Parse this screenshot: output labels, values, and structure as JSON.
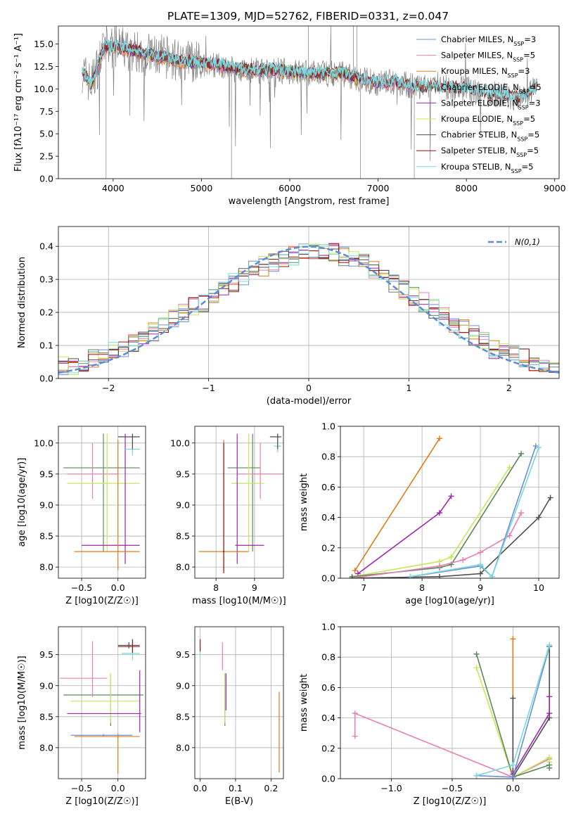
{
  "figure_title": "PLATE=1309, MJD=52762, FIBERID=0331, z=0.047",
  "colors": {
    "Chabrier MILES": "#6b8fd6",
    "Salpeter MILES": "#e680b4",
    "Kroupa MILES": "#e07b1e",
    "Chabrier ELODIE": "#5a8a5a",
    "Salpeter ELODIE": "#9b27af",
    "Kroupa ELODIE": "#c8e65a",
    "Chabrier STELIB": "#4d4d4d",
    "Salpeter STELIB": "#a01010",
    "Kroupa STELIB": "#7ad8dc",
    "data": "#808080",
    "normal": "#5b8ad6"
  },
  "chart_data": [
    {
      "id": "spectrum",
      "type": "line",
      "xlabel": "wavelength [Angstrom, rest frame]",
      "ylabel": "Flux [fλ10⁻¹⁷ erg cm⁻² s⁻¹ A⁻¹]",
      "xlim": [
        3380,
        9050
      ],
      "ylim": [
        0,
        17
      ],
      "xticks": [
        4000,
        5000,
        6000,
        7000,
        8000,
        9000
      ],
      "yticks": [
        0.0,
        2.5,
        5.0,
        7.5,
        10.0,
        12.5,
        15.0
      ],
      "legend": "top-right",
      "grid": false,
      "series": [
        {
          "name": "Chabrier MILES",
          "label": "Chabrier MILES, N_SSP=3"
        },
        {
          "name": "Salpeter MILES",
          "label": "Salpeter MILES, N_SSP=5"
        },
        {
          "name": "Kroupa MILES",
          "label": "Kroupa MILES, N_SSP=3"
        },
        {
          "name": "Chabrier ELODIE",
          "label": "Chabrier ELODIE, N_SSP=5"
        },
        {
          "name": "Salpeter ELODIE",
          "label": "Salpeter ELODIE, N_SSP=3"
        },
        {
          "name": "Kroupa ELODIE",
          "label": "Kroupa ELODIE, N_SSP=5"
        },
        {
          "name": "Chabrier STELIB",
          "label": "Chabrier STELIB, N_SSP=5"
        },
        {
          "name": "Salpeter STELIB",
          "label": "Salpeter STELIB, N_SSP=5"
        },
        {
          "name": "Kroupa STELIB",
          "label": "Kroupa STELIB, N_SSP=5"
        }
      ],
      "continuum": {
        "x": [
          3650,
          3750,
          3900,
          4000,
          4200,
          4400,
          4600,
          4800,
          5000,
          5200,
          5400,
          5600,
          5800,
          6000,
          6200,
          6400,
          6600,
          6800,
          7000,
          7200,
          7400,
          7600,
          7800,
          8000,
          8200,
          8400,
          8600,
          8800
        ],
        "y": [
          12.0,
          10.5,
          14.6,
          14.7,
          14.3,
          13.8,
          13.5,
          13.0,
          12.9,
          12.6,
          12.2,
          12.0,
          12.1,
          11.9,
          11.7,
          11.7,
          11.7,
          11.1,
          10.6,
          10.8,
          10.2,
          10.2,
          10.1,
          10.0,
          9.5,
          9.3,
          9.0,
          10.1
        ]
      }
    },
    {
      "id": "residual-hist",
      "type": "histogram",
      "xlabel": "(data-model)/error",
      "ylabel": "Normed distribution",
      "xlim": [
        -2.5,
        2.5
      ],
      "ylim": [
        0,
        0.46
      ],
      "xticks": [
        -2,
        -1,
        0,
        1,
        2
      ],
      "yticks": [
        0.0,
        0.1,
        0.2,
        0.3,
        0.4
      ],
      "grid": true,
      "legend": "top-right",
      "reference_label": "N(0,1)",
      "bin_edges_start": -2.5,
      "bin_width": 0.1,
      "envelope": [
        0.04,
        0.04,
        0.05,
        0.06,
        0.07,
        0.08,
        0.09,
        0.11,
        0.12,
        0.14,
        0.16,
        0.18,
        0.2,
        0.22,
        0.23,
        0.25,
        0.27,
        0.29,
        0.31,
        0.33,
        0.34,
        0.35,
        0.36,
        0.37,
        0.38,
        0.39,
        0.39,
        0.38,
        0.37,
        0.36,
        0.35,
        0.33,
        0.31,
        0.29,
        0.27,
        0.25,
        0.23,
        0.21,
        0.19,
        0.17,
        0.15,
        0.13,
        0.11,
        0.09,
        0.08,
        0.07,
        0.06,
        0.05,
        0.05,
        0.04
      ]
    },
    {
      "id": "age-vs-Z",
      "type": "errorbar",
      "xlabel": "Z [log10(Z/Z☉)]",
      "ylabel": "age  [log10(age/yr)]",
      "xlim": [
        -0.82,
        0.38
      ],
      "ylim": [
        7.82,
        10.27
      ],
      "xticks": [
        -0.5,
        0.0
      ],
      "yticks": [
        8.0,
        8.5,
        9.0,
        9.5,
        10.0
      ],
      "grid": true,
      "points": [
        {
          "series": "Chabrier ELODIE",
          "x": -0.2,
          "xerr": [
            0.55,
            0.5
          ],
          "y": 9.6,
          "yerr": [
            1.35,
            0.55
          ]
        },
        {
          "series": "Salpeter MILES",
          "x": -0.35,
          "xerr": [
            0.35,
            0.35
          ],
          "y": 9.5,
          "yerr": [
            0.4,
            0.5
          ]
        },
        {
          "series": "Kroupa ELODIE",
          "x": -0.15,
          "xerr": [
            0.55,
            0.45
          ],
          "y": 9.35,
          "yerr": [
            1.1,
            0.8
          ]
        },
        {
          "series": "Salpeter ELODIE",
          "x": 0.1,
          "xerr": [
            0.6,
            0.2
          ],
          "y": 8.35,
          "yerr": [
            0.3,
            1.8
          ]
        },
        {
          "series": "Kroupa MILES",
          "x": 0.0,
          "xerr": [
            0.6,
            0.3
          ],
          "y": 8.25,
          "yerr": [
            0.3,
            1.8
          ]
        },
        {
          "series": "Kroupa STELIB",
          "x": 0.2,
          "xerr": [
            0.1,
            0.1
          ],
          "y": 9.9,
          "yerr": [
            0.1,
            0.2
          ]
        },
        {
          "series": "Chabrier STELIB",
          "x": 0.2,
          "xerr": [
            0.2,
            0.1
          ],
          "y": 10.1,
          "yerr": [
            0.2,
            0.05
          ]
        }
      ]
    },
    {
      "id": "age-vs-mass",
      "type": "errorbar",
      "xlabel": "mass [log10(M/M☉)]",
      "ylabel": "",
      "xlim": [
        7.45,
        9.75
      ],
      "ylim": [
        7.82,
        10.27
      ],
      "xticks": [
        8,
        9
      ],
      "yticks": [
        8.0,
        8.5,
        9.0,
        9.5,
        10.0
      ],
      "grid": true,
      "points": [
        {
          "series": "Chabrier ELODIE",
          "x": 8.95,
          "xerr": [
            0.65,
            0.2
          ],
          "y": 9.6,
          "yerr": [
            1.35,
            0.55
          ]
        },
        {
          "series": "Salpeter MILES",
          "x": 9.15,
          "xerr": [
            0.6,
            0.6
          ],
          "y": 9.5,
          "yerr": [
            0.4,
            0.5
          ]
        },
        {
          "series": "Kroupa ELODIE",
          "x": 8.85,
          "xerr": [
            0.45,
            0.4
          ],
          "y": 9.35,
          "yerr": [
            1.1,
            0.8
          ]
        },
        {
          "series": "Salpeter ELODIE",
          "x": 8.55,
          "xerr": [
            0.05,
            0.7
          ],
          "y": 8.35,
          "yerr": [
            0.3,
            1.8
          ]
        },
        {
          "series": "Kroupa MILES",
          "x": 8.2,
          "xerr": [
            0.65,
            0.65
          ],
          "y": 8.25,
          "yerr": [
            0.3,
            1.8
          ]
        },
        {
          "series": "Salpeter STELIB",
          "x": 8.2,
          "xerr": [
            0.02,
            0.02
          ],
          "y": 8.25,
          "yerr": [
            0.35,
            1.75
          ]
        },
        {
          "series": "Kroupa STELIB",
          "x": 9.6,
          "xerr": [
            0.1,
            0.1
          ],
          "y": 9.95,
          "yerr": [
            0.1,
            0.2
          ]
        },
        {
          "series": "Chabrier STELIB",
          "x": 9.6,
          "xerr": [
            0.2,
            0.1
          ],
          "y": 10.1,
          "yerr": [
            0.2,
            0.05
          ]
        }
      ]
    },
    {
      "id": "weight-vs-age",
      "type": "line",
      "xlabel": "age  [log10(age/yr)]",
      "ylabel": "mass weight",
      "xlim": [
        6.6,
        10.35
      ],
      "ylim": [
        0,
        1
      ],
      "xticks": [
        7,
        8,
        9,
        10
      ],
      "yticks": [
        0.0,
        0.2,
        0.4,
        0.6,
        0.8,
        1.0
      ],
      "grid": true,
      "series": [
        {
          "name": "Kroupa MILES",
          "x": [
            6.85,
            8.3
          ],
          "y": [
            0.05,
            0.92
          ]
        },
        {
          "name": "Salpeter ELODIE",
          "x": [
            6.9,
            8.3,
            8.5
          ],
          "y": [
            0.03,
            0.43,
            0.54
          ]
        },
        {
          "name": "Kroupa ELODIE",
          "x": [
            6.8,
            8.3,
            8.5,
            9.5
          ],
          "y": [
            0.01,
            0.11,
            0.14,
            0.73
          ]
        },
        {
          "name": "Chabrier ELODIE",
          "x": [
            6.8,
            8.3,
            8.5,
            9.7
          ],
          "y": [
            0.01,
            0.07,
            0.09,
            0.82
          ]
        },
        {
          "name": "Salpeter MILES",
          "x": [
            6.8,
            8.3,
            8.7,
            9.0,
            9.5,
            9.7
          ],
          "y": [
            0.0,
            0.08,
            0.12,
            0.17,
            0.28,
            0.43
          ]
        },
        {
          "name": "Chabrier STELIB",
          "x": [
            6.8,
            8.3,
            9.0,
            10.0,
            10.2
          ],
          "y": [
            0.0,
            0.01,
            0.03,
            0.4,
            0.53
          ]
        },
        {
          "name": "Chabrier MILES",
          "x": [
            7.8,
            9.0,
            9.2,
            9.95
          ],
          "y": [
            0.01,
            0.08,
            0.01,
            0.87
          ]
        },
        {
          "name": "Kroupa STELIB",
          "x": [
            7.8,
            9.0,
            9.2,
            10.0
          ],
          "y": [
            0.01,
            0.09,
            0.01,
            0.86
          ]
        }
      ]
    },
    {
      "id": "mass-vs-Z",
      "type": "errorbar",
      "xlabel": "Z [log10(Z/Z☉)]",
      "ylabel": "mass [log10(M/M☉)]",
      "xlim": [
        -0.82,
        0.38
      ],
      "ylim": [
        7.5,
        9.95
      ],
      "xticks": [
        -0.5,
        0.0
      ],
      "yticks": [
        8.0,
        8.5,
        9.0,
        9.5
      ],
      "grid": true,
      "points": [
        {
          "series": "Chabrier ELODIE",
          "x": -0.1,
          "xerr": [
            0.65,
            0.45
          ],
          "y": 8.85,
          "yerr": [
            0.5,
            0.35
          ]
        },
        {
          "series": "Salpeter MILES",
          "x": -0.35,
          "xerr": [
            0.45,
            0.2
          ],
          "y": 9.12,
          "yerr": [
            0.3,
            0.6
          ]
        },
        {
          "series": "Kroupa ELODIE",
          "x": -0.1,
          "xerr": [
            0.55,
            0.4
          ],
          "y": 8.75,
          "yerr": [
            0.35,
            0.45
          ]
        },
        {
          "series": "Salpeter ELODIE",
          "x": 0.3,
          "xerr": [
            1.0,
            0.02
          ],
          "y": 8.55,
          "yerr": [
            0.3,
            0.7
          ]
        },
        {
          "series": "Kroupa MILES",
          "x": 0.0,
          "xerr": [
            0.6,
            0.3
          ],
          "y": 8.18,
          "yerr": [
            0.6,
            0.05
          ]
        },
        {
          "series": "Chabrier MILES",
          "x": -0.2,
          "xerr": [
            0.45,
            0.4
          ],
          "y": 8.2,
          "yerr": [
            0.02,
            0.02
          ]
        },
        {
          "series": "Kroupa STELIB",
          "x": 0.2,
          "xerr": [
            0.15,
            0.1
          ],
          "y": 9.52,
          "yerr": [
            0.1,
            0.1
          ]
        },
        {
          "series": "Salpeter STELIB",
          "x": 0.2,
          "xerr": [
            0.2,
            0.1
          ],
          "y": 9.63,
          "yerr": [
            0.1,
            0.12
          ]
        },
        {
          "series": "Chabrier STELIB",
          "x": 0.15,
          "xerr": [
            0.15,
            0.15
          ],
          "y": 9.65,
          "yerr": [
            0.05,
            0.05
          ]
        }
      ]
    },
    {
      "id": "mass-vs-ebv",
      "type": "errorbar",
      "xlabel": "E(B-V)",
      "ylabel": "",
      "xlim": [
        -0.015,
        0.235
      ],
      "ylim": [
        7.5,
        9.95
      ],
      "xticks": [
        0.0,
        0.1,
        0.2
      ],
      "yticks": [
        8.0,
        8.5,
        9.0,
        9.5
      ],
      "grid": true,
      "points": [
        {
          "series": "Salpeter MILES",
          "x": 0.063,
          "xerr": [
            0,
            0
          ],
          "y": 9.45,
          "yerr": [
            0.2,
            0.25
          ]
        },
        {
          "series": "Kroupa STELIB",
          "x": 0.0,
          "xerr": [
            0,
            0
          ],
          "y": 9.55,
          "yerr": [
            0.1,
            0.1
          ]
        },
        {
          "series": "Salpeter STELIB",
          "x": 0.0,
          "xerr": [
            0,
            0
          ],
          "y": 9.65,
          "yerr": [
            0.1,
            0.1
          ]
        },
        {
          "series": "Chabrier ELODIE",
          "x": 0.07,
          "xerr": [
            0,
            0
          ],
          "y": 8.85,
          "yerr": [
            0.5,
            0.35
          ]
        },
        {
          "series": "Kroupa ELODIE",
          "x": 0.07,
          "xerr": [
            0,
            0
          ],
          "y": 8.75,
          "yerr": [
            0.35,
            0.45
          ]
        },
        {
          "series": "Salpeter ELODIE",
          "x": 0.073,
          "xerr": [
            0,
            0
          ],
          "y": 8.9,
          "yerr": [
            0.3,
            0.3
          ]
        },
        {
          "series": "Kroupa MILES",
          "x": 0.223,
          "xerr": [
            0,
            0
          ],
          "y": 8.25,
          "yerr": [
            0.65,
            0.65
          ]
        }
      ]
    },
    {
      "id": "weight-vs-Z",
      "type": "line",
      "xlabel": "Z [log10(Z/Z☉)]",
      "ylabel": "mass weight",
      "xlim": [
        -1.42,
        0.38
      ],
      "ylim": [
        0,
        1
      ],
      "xticks": [
        -1.0,
        -0.5,
        0.0
      ],
      "yticks": [
        0.0,
        0.2,
        0.4,
        0.6,
        0.8,
        1.0
      ],
      "grid": true,
      "series": [
        {
          "name": "Salpeter MILES",
          "x": [
            -1.3,
            -1.3,
            0.0,
            0.3
          ],
          "y": [
            0.28,
            0.43,
            0.01,
            0.13
          ]
        },
        {
          "name": "Kroupa ELODIE",
          "x": [
            -0.3,
            0.0,
            0.3,
            0.3
          ],
          "y": [
            0.73,
            0.01,
            0.14,
            0.11
          ]
        },
        {
          "name": "Chabrier ELODIE",
          "x": [
            -0.3,
            0.0,
            0.3,
            0.3
          ],
          "y": [
            0.82,
            0.01,
            0.09,
            0.07
          ]
        },
        {
          "name": "Kroupa MILES",
          "x": [
            0.0,
            0.0
          ],
          "y": [
            0.92,
            0.05
          ]
        },
        {
          "name": "Chabrier STELIB",
          "x": [
            0.0,
            0.0,
            0.3,
            0.3
          ],
          "y": [
            0.53,
            0.01,
            0.4,
            0.87
          ]
        },
        {
          "name": "Salpeter ELODIE",
          "x": [
            0.0,
            0.3,
            0.3
          ],
          "y": [
            0.03,
            0.43,
            0.54
          ]
        },
        {
          "name": "Chabrier MILES",
          "x": [
            -0.3,
            0.0,
            0.3
          ],
          "y": [
            0.02,
            0.01,
            0.87
          ]
        },
        {
          "name": "Kroupa STELIB",
          "x": [
            -0.3,
            0.0,
            0.3
          ],
          "y": [
            0.02,
            0.09,
            0.88
          ]
        }
      ]
    }
  ]
}
